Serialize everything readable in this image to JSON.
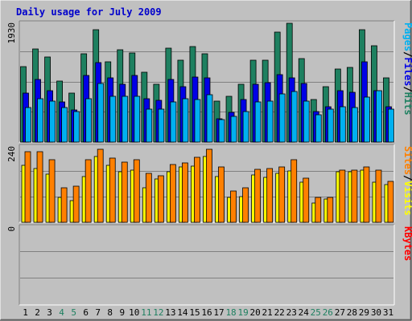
{
  "title": "Daily usage for July 2009",
  "colors": {
    "hits": "#1e8060",
    "files": "#0000e6",
    "pages": "#00b0f0",
    "visits": "#ffff00",
    "sites": "#ff8000",
    "kbytes": "#ff0000",
    "weekend_day": "#1e8060",
    "weekday": "#000000",
    "title": "#0000cc"
  },
  "chart_data": [
    {
      "type": "bar",
      "name": "hits-files-pages",
      "categories": [
        "1",
        "2",
        "3",
        "4",
        "5",
        "6",
        "7",
        "8",
        "9",
        "10",
        "11",
        "12",
        "13",
        "14",
        "15",
        "16",
        "17",
        "18",
        "19",
        "20",
        "21",
        "22",
        "23",
        "24",
        "25",
        "26",
        "27",
        "28",
        "29",
        "30",
        "31"
      ],
      "weekend_days": [
        "4",
        "5",
        "11",
        "12",
        "18",
        "19",
        "25",
        "26"
      ],
      "ymax_label": "1930",
      "ylim": [
        0,
        1930
      ],
      "axis_label_parts": [
        "Pages",
        "/",
        "Files",
        "/",
        "Hits"
      ],
      "series": [
        {
          "name": "Hits",
          "values": [
            1230,
            1510,
            1380,
            990,
            800,
            1430,
            1830,
            1310,
            1500,
            1450,
            1140,
            940,
            1530,
            1330,
            1550,
            1430,
            660,
            740,
            940,
            1330,
            1330,
            1790,
            1930,
            1350,
            690,
            900,
            1190,
            1210,
            1830,
            1570,
            1040
          ]
        },
        {
          "name": "Files",
          "values": [
            790,
            1020,
            840,
            650,
            520,
            1080,
            1290,
            1040,
            940,
            1080,
            710,
            680,
            1020,
            900,
            1050,
            1040,
            380,
            480,
            690,
            940,
            970,
            1090,
            1040,
            950,
            500,
            580,
            830,
            810,
            1310,
            830,
            580
          ]
        },
        {
          "name": "Pages",
          "values": [
            560,
            710,
            670,
            560,
            490,
            700,
            950,
            740,
            740,
            740,
            540,
            540,
            650,
            700,
            690,
            770,
            370,
            420,
            500,
            650,
            660,
            780,
            820,
            660,
            440,
            540,
            580,
            560,
            730,
            830,
            540
          ]
        }
      ]
    },
    {
      "type": "bar",
      "name": "visits-sites",
      "categories": [
        "1",
        "2",
        "3",
        "4",
        "5",
        "6",
        "7",
        "8",
        "9",
        "10",
        "11",
        "12",
        "13",
        "14",
        "15",
        "16",
        "17",
        "18",
        "19",
        "20",
        "21",
        "22",
        "23",
        "24",
        "25",
        "26",
        "27",
        "28",
        "29",
        "30",
        "31"
      ],
      "ymax_label": "240",
      "ylim": [
        0,
        240
      ],
      "axis_label_parts": [
        "Sites",
        "/",
        "Visits"
      ],
      "series": [
        {
          "name": "Visits",
          "values": [
            180,
            172,
            152,
            80,
            70,
            145,
            210,
            180,
            160,
            165,
            109,
            138,
            160,
            177,
            178,
            210,
            145,
            79,
            82,
            150,
            142,
            155,
            163,
            128,
            60,
            75,
            160,
            160,
            165,
            127,
            120
          ]
        },
        {
          "name": "Sites",
          "values": [
            225,
            225,
            198,
            110,
            115,
            200,
            233,
            205,
            192,
            198,
            155,
            148,
            185,
            190,
            208,
            233,
            175,
            100,
            110,
            168,
            172,
            175,
            200,
            140,
            78,
            80,
            165,
            165,
            175,
            167,
            130
          ]
        }
      ]
    },
    {
      "type": "bar",
      "name": "kbytes",
      "categories": [
        "1",
        "2",
        "3",
        "4",
        "5",
        "6",
        "7",
        "8",
        "9",
        "10",
        "11",
        "12",
        "13",
        "14",
        "15",
        "16",
        "17",
        "18",
        "19",
        "20",
        "21",
        "22",
        "23",
        "24",
        "25",
        "26",
        "27",
        "28",
        "29",
        "30",
        "31"
      ],
      "ymax_label": "0",
      "ylim": [
        0,
        1
      ],
      "axis_label_parts": [
        "KBytes"
      ],
      "series": [
        {
          "name": "KBytes",
          "values": [
            0,
            0,
            0,
            0,
            0,
            0,
            0,
            0,
            0,
            0,
            0,
            0,
            0,
            0,
            0,
            0,
            0,
            0,
            0,
            0,
            0,
            0,
            0,
            0,
            0,
            0,
            0,
            0,
            0,
            0,
            0
          ]
        }
      ]
    }
  ]
}
